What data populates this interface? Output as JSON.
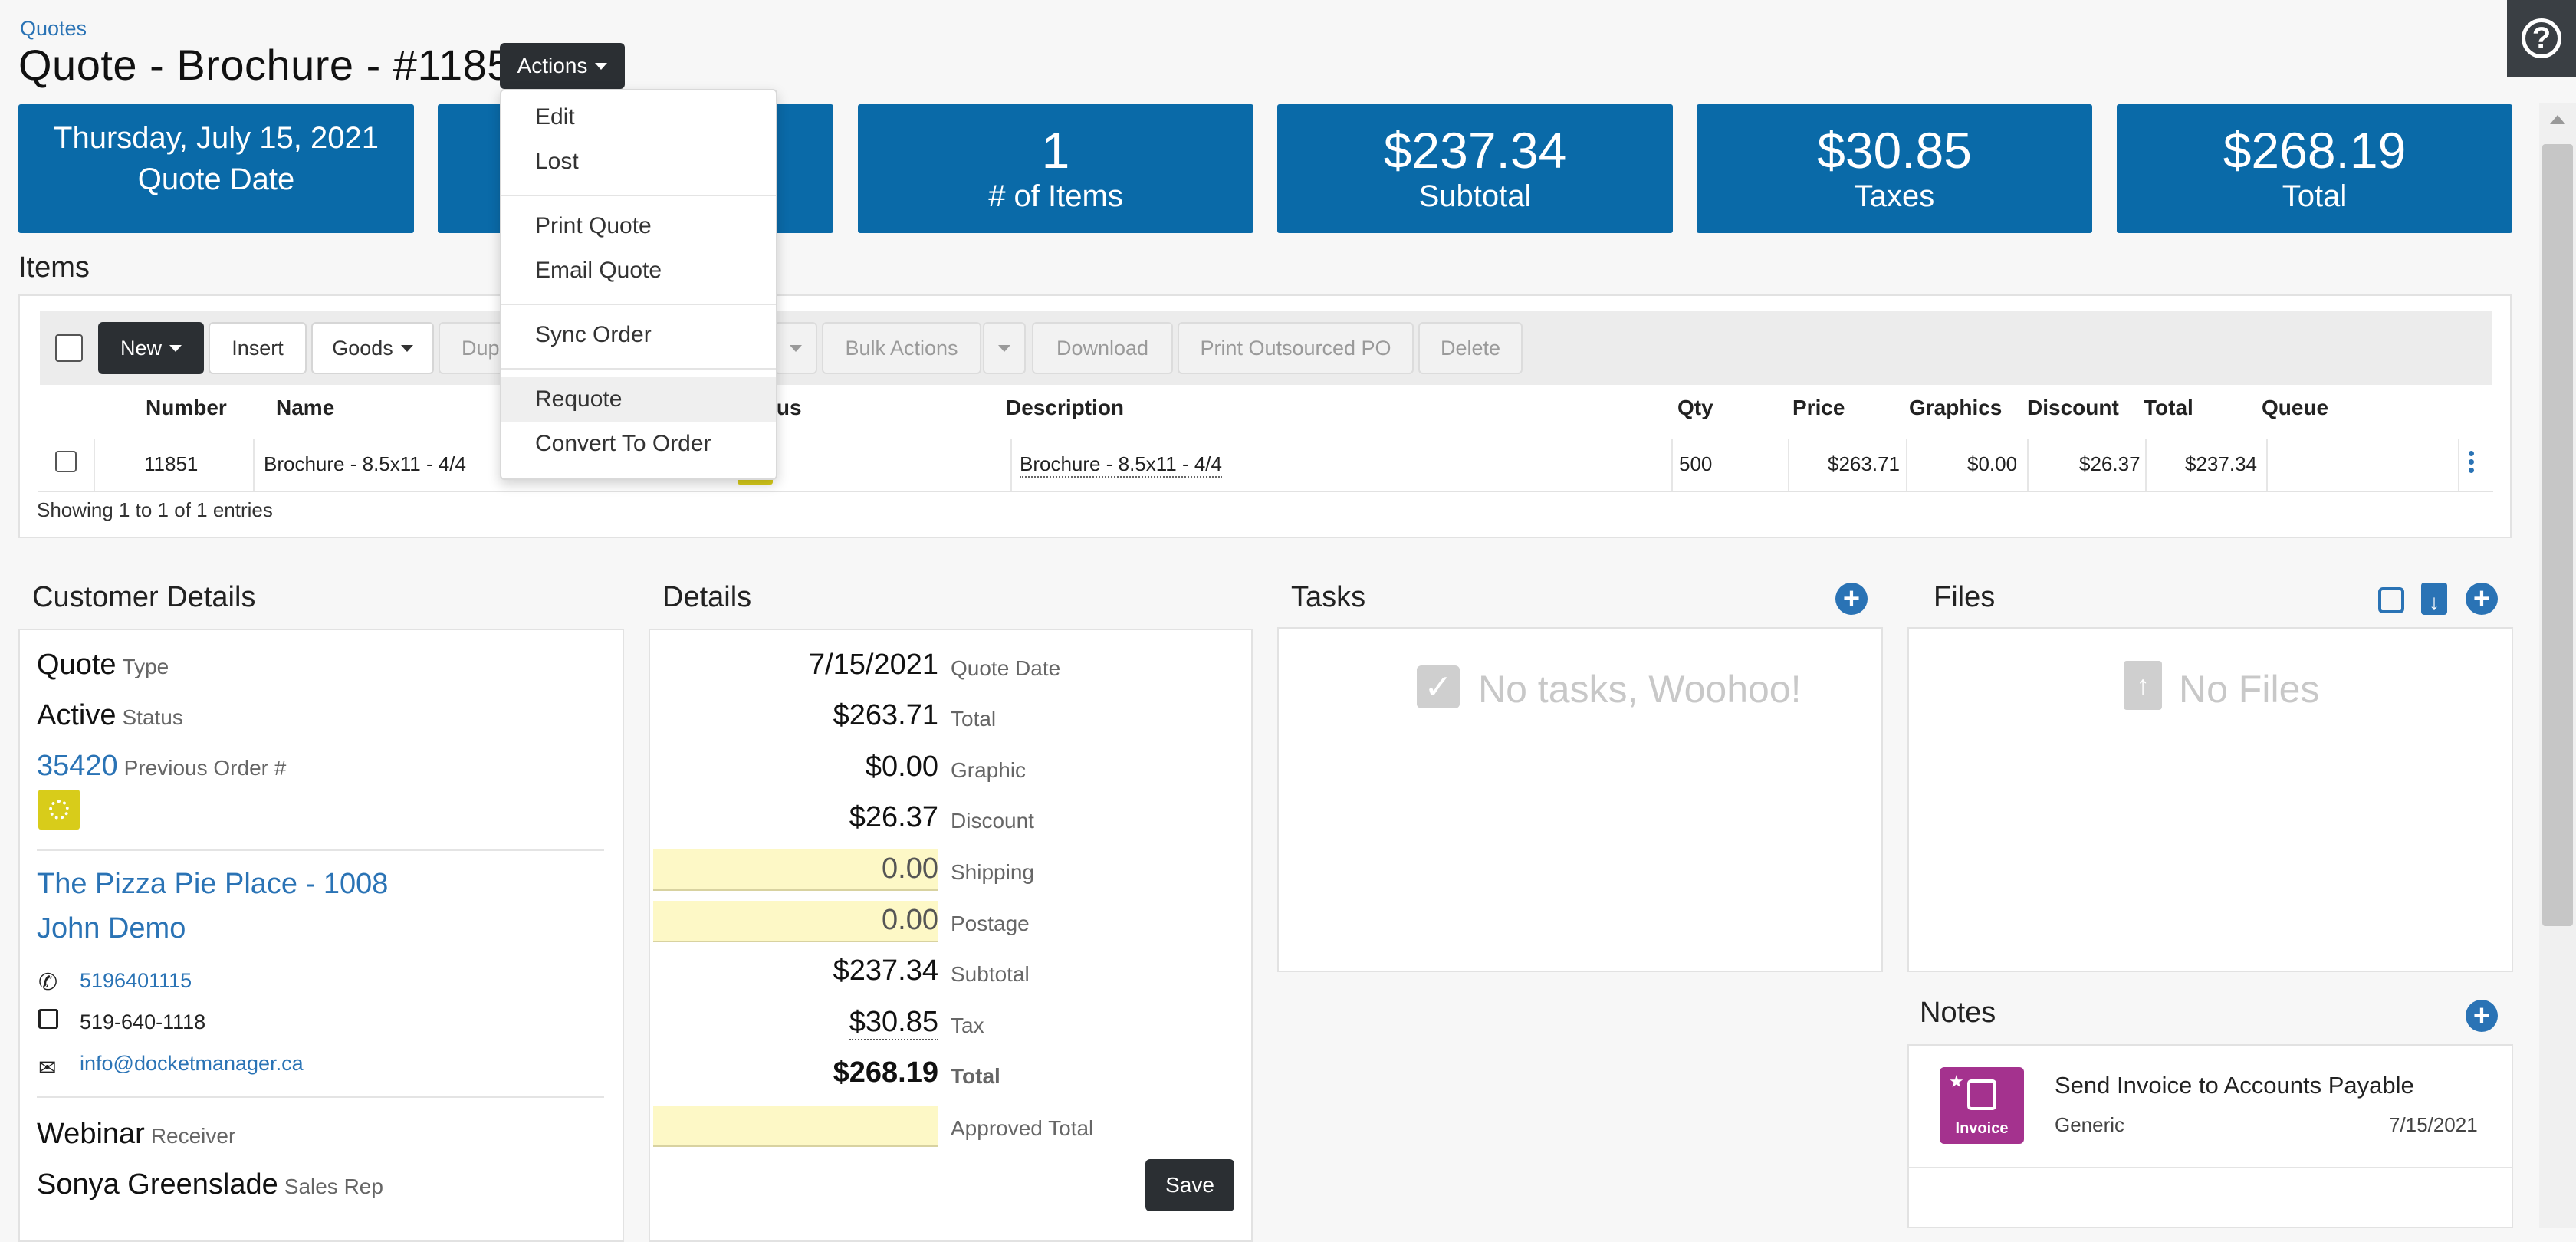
{
  "breadcrumb": "Quotes",
  "page_title": "Quote - Brochure - #1185",
  "actions_label": "Actions",
  "stats": [
    {
      "value": "Thursday, July 15, 2021",
      "label": "Quote Date"
    },
    {
      "value": "",
      "label": ""
    },
    {
      "value": "1",
      "label": "# of Items"
    },
    {
      "value": "$237.34",
      "label": "Subtotal"
    },
    {
      "value": "$30.85",
      "label": "Taxes"
    },
    {
      "value": "$268.19",
      "label": "Total"
    }
  ],
  "actions_menu": {
    "items": [
      "Edit",
      "Lost",
      "Print Quote",
      "Email Quote",
      "Sync Order",
      "Requote",
      "Convert To Order"
    ]
  },
  "items_section": {
    "title": "Items",
    "toolbar": {
      "new": "New",
      "insert": "Insert",
      "goods": "Goods",
      "dup": "Dup",
      "bulk_actions": "Bulk Actions",
      "download": "Download",
      "print_po": "Print Outsourced PO",
      "delete": "Delete"
    },
    "columns": [
      "Number",
      "Name",
      "Status",
      "Description",
      "Qty",
      "Price",
      "Graphics",
      "Discount",
      "Total",
      "Queue"
    ],
    "rows": [
      {
        "number": "11851",
        "name": "Brochure - 8.5x11 - 4/4",
        "description": "Brochure - 8.5x11 - 4/4",
        "qty": "500",
        "price": "$263.71",
        "graphics": "$0.00",
        "discount": "$26.37",
        "total": "$237.34",
        "queue": ""
      }
    ],
    "footer": "Showing 1 to 1 of 1 entries"
  },
  "customer_details": {
    "title": "Customer Details",
    "type_value": "Quote",
    "type_label": "Type",
    "status_value": "Active",
    "status_label": "Status",
    "prev_order_value": "35420",
    "prev_order_label": "Previous Order #",
    "company": "The Pizza Pie Place - 1008",
    "contact": "John Demo",
    "phone": "5196401115",
    "fax": "519-640-1118",
    "email": "info@docketmanager.ca",
    "receiver_value": "Webinar",
    "receiver_label": "Receiver",
    "sales_rep_value": "Sonya Greenslade",
    "sales_rep_label": "Sales Rep"
  },
  "details": {
    "title": "Details",
    "rows": [
      {
        "value": "7/15/2021",
        "label": "Quote Date"
      },
      {
        "value": "$263.71",
        "label": "Total"
      },
      {
        "value": "$0.00",
        "label": "Graphic"
      },
      {
        "value": "$26.37",
        "label": "Discount"
      },
      {
        "value": "0.00",
        "label": "Shipping"
      },
      {
        "value": "0.00",
        "label": "Postage"
      },
      {
        "value": "$237.34",
        "label": "Subtotal"
      },
      {
        "value": "$30.85",
        "label": "Tax"
      },
      {
        "value": "$268.19",
        "label": "Total"
      },
      {
        "value": "",
        "label": "Approved Total"
      }
    ],
    "save_label": "Save"
  },
  "tasks": {
    "title": "Tasks",
    "empty": "No tasks, Woohoo!"
  },
  "files": {
    "title": "Files",
    "empty": "No Files"
  },
  "notes": {
    "title": "Notes",
    "items": [
      {
        "badge": "Invoice",
        "title": "Send Invoice to Accounts Payable",
        "type": "Generic",
        "date": "7/15/2021"
      }
    ]
  },
  "colors": {
    "accent": "#0a6aa8",
    "link": "#2a73b5",
    "dark_button": "#2b2f33",
    "note_badge": "#a4328e"
  }
}
